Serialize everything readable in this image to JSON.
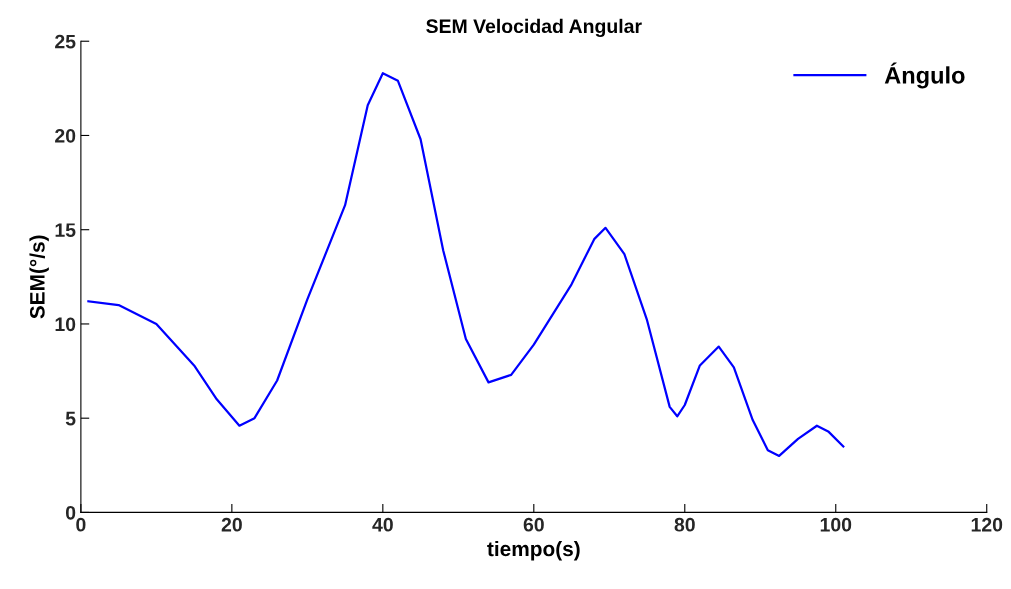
{
  "chart_data": {
    "type": "line",
    "title": "SEM Velocidad Angular",
    "xlabel": "tiempo(s)",
    "ylabel": "SEM(°/s)",
    "x": [
      1,
      5,
      10,
      15,
      18,
      21,
      23,
      26,
      30,
      35,
      38,
      40,
      42,
      45,
      48,
      51,
      54,
      57,
      60,
      65,
      68,
      69.5,
      72,
      75,
      78,
      79,
      80,
      82,
      84.5,
      86.5,
      89,
      91,
      92.5,
      95,
      97.5,
      99,
      101
    ],
    "series": [
      {
        "name": "Ángulo",
        "color": "#0000ff",
        "values": [
          11.2,
          11.0,
          10.0,
          7.8,
          6.0,
          4.6,
          5.0,
          7.0,
          11.3,
          16.3,
          21.6,
          23.3,
          22.9,
          19.8,
          13.9,
          9.2,
          6.9,
          7.3,
          8.9,
          12.1,
          14.5,
          15.1,
          13.7,
          10.2,
          5.6,
          5.1,
          5.7,
          7.8,
          8.8,
          7.7,
          4.9,
          3.3,
          3.0,
          3.9,
          4.6,
          4.3,
          3.5
        ]
      }
    ],
    "xlim": [
      0,
      120
    ],
    "xticks": [
      0,
      20,
      40,
      60,
      80,
      100,
      120
    ],
    "ylim": [
      0,
      25
    ],
    "yticks": [
      0,
      5,
      10,
      15,
      20,
      25
    ],
    "grid": false,
    "legend": "top right",
    "marker": "none",
    "line_style": "solid"
  }
}
